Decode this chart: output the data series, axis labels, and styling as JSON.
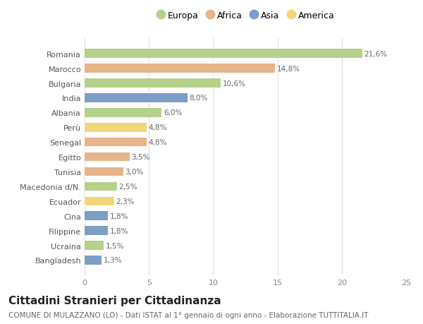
{
  "categories": [
    "Romania",
    "Marocco",
    "Bulgaria",
    "India",
    "Albania",
    "Perù",
    "Senegal",
    "Egitto",
    "Tunisia",
    "Macedonia d/N.",
    "Ecuador",
    "Cina",
    "Filippine",
    "Ucraina",
    "Bangladesh"
  ],
  "values": [
    21.6,
    14.8,
    10.6,
    8.0,
    6.0,
    4.8,
    4.8,
    3.5,
    3.0,
    2.5,
    2.3,
    1.8,
    1.8,
    1.5,
    1.3
  ],
  "labels": [
    "21,6%",
    "14,8%",
    "10,6%",
    "8,0%",
    "6,0%",
    "4,8%",
    "4,8%",
    "3,5%",
    "3,0%",
    "2,5%",
    "2,3%",
    "1,8%",
    "1,8%",
    "1,5%",
    "1,3%"
  ],
  "continents": [
    "Europa",
    "Africa",
    "Europa",
    "Asia",
    "Europa",
    "America",
    "Africa",
    "Africa",
    "Africa",
    "Europa",
    "America",
    "Asia",
    "Asia",
    "Europa",
    "Asia"
  ],
  "continent_colors": {
    "Europa": "#b5d18a",
    "Africa": "#e8b48a",
    "Asia": "#7b9fc4",
    "America": "#f0d678"
  },
  "legend_order": [
    "Europa",
    "Africa",
    "Asia",
    "America"
  ],
  "title": "Cittadini Stranieri per Cittadinanza",
  "subtitle": "COMUNE DI MULAZZANO (LO) - Dati ISTAT al 1° gennaio di ogni anno - Elaborazione TUTTITALIA.IT",
  "xlim": [
    0,
    25
  ],
  "xticks": [
    0,
    5,
    10,
    15,
    20,
    25
  ],
  "background_color": "#ffffff",
  "bar_height": 0.6,
  "grid_color": "#e0e0e0",
  "title_fontsize": 11,
  "subtitle_fontsize": 7.5,
  "label_fontsize": 7.5,
  "tick_fontsize": 8,
  "legend_fontsize": 9
}
